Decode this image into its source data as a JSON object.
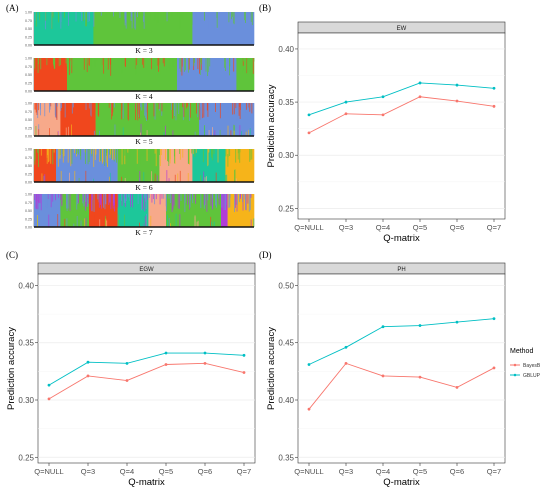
{
  "colors": {
    "strip": "#d9d9d9",
    "strip_border": "#333333",
    "bayesb": "#f8766d",
    "gblup": "#00bfc4",
    "k_palette": [
      "#1dc79a",
      "#6a8fdc",
      "#5fc43b",
      "#f0471d",
      "#f7a98a",
      "#f6b41a",
      "#b13bd8"
    ]
  },
  "panel_labels": {
    "a": "(A)",
    "b": "(B)",
    "c": "(C)",
    "d": "(D)"
  },
  "structure": {
    "y_ticks": [
      "1.00",
      "0.75",
      "0.50",
      "0.25",
      "0.00"
    ],
    "k_labels": [
      "K = 3",
      "K = 4",
      "K = 5",
      "K = 6",
      "K = 7"
    ]
  },
  "legend": {
    "title": "Method",
    "items": [
      {
        "label": "BayesB",
        "color": "#f8766d"
      },
      {
        "label": "GBLUP",
        "color": "#00bfc4"
      }
    ]
  },
  "chart_data": [
    {
      "type": "line",
      "panel": "B",
      "title": "EW",
      "xlabel": "Q-matrix",
      "ylabel": "Prediction accuracy",
      "categories": [
        "Q=NULL",
        "Q=3",
        "Q=4",
        "Q=5",
        "Q=6",
        "Q=7"
      ],
      "ylim": [
        0.24,
        0.415
      ],
      "yticks": [
        "0.25",
        "0.30",
        "0.35",
        "0.40"
      ],
      "series": [
        {
          "name": "BayesB",
          "values": [
            0.321,
            0.339,
            0.338,
            0.355,
            0.351,
            0.346
          ]
        },
        {
          "name": "GBLUP",
          "values": [
            0.338,
            0.35,
            0.355,
            0.368,
            0.366,
            0.363
          ]
        }
      ]
    },
    {
      "type": "line",
      "panel": "C",
      "title": "EGW",
      "xlabel": "Q-matrix",
      "ylabel": "Prediction accuracy",
      "categories": [
        "Q=NULL",
        "Q=3",
        "Q=4",
        "Q=5",
        "Q=6",
        "Q=7"
      ],
      "ylim": [
        0.245,
        0.41
      ],
      "yticks": [
        "0.25",
        "0.30",
        "0.35",
        "0.40"
      ],
      "series": [
        {
          "name": "BayesB",
          "values": [
            0.301,
            0.321,
            0.317,
            0.331,
            0.332,
            0.324
          ]
        },
        {
          "name": "GBLUP",
          "values": [
            0.313,
            0.333,
            0.332,
            0.341,
            0.341,
            0.339
          ]
        }
      ]
    },
    {
      "type": "line",
      "panel": "D",
      "title": "PH",
      "xlabel": "Q-matrix",
      "ylabel": "Prediction accuracy",
      "categories": [
        "Q=NULL",
        "Q=3",
        "Q=4",
        "Q=5",
        "Q=6",
        "Q=7"
      ],
      "ylim": [
        0.345,
        0.51
      ],
      "yticks": [
        "0.35",
        "0.40",
        "0.45",
        "0.50"
      ],
      "series": [
        {
          "name": "BayesB",
          "values": [
            0.392,
            0.432,
            0.421,
            0.42,
            0.411,
            0.428
          ]
        },
        {
          "name": "GBLUP",
          "values": [
            0.431,
            0.446,
            0.464,
            0.465,
            0.468,
            0.471
          ]
        }
      ]
    }
  ]
}
